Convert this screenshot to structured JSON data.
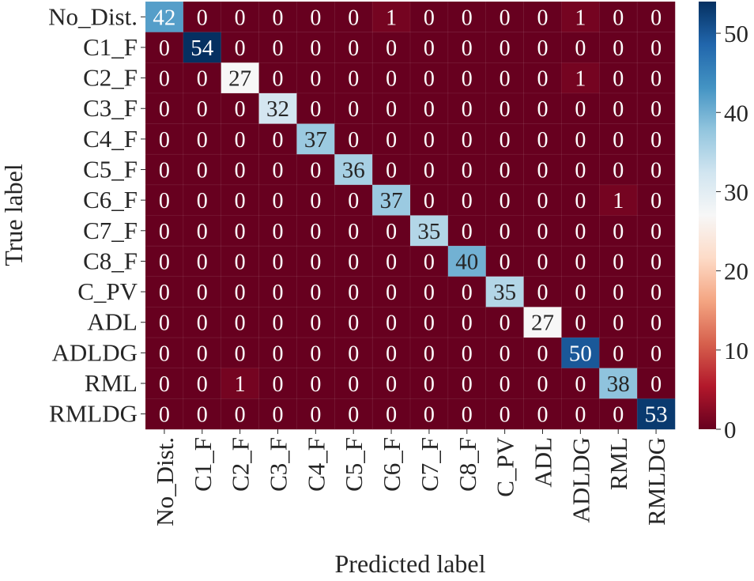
{
  "chart_data": {
    "type": "heatmap",
    "title": "",
    "xlabel": "Predicted label",
    "ylabel": "True label",
    "x_categories": [
      "No_Dist.",
      "C1_F",
      "C2_F",
      "C3_F",
      "C4_F",
      "C5_F",
      "C6_F",
      "C7_F",
      "C8_F",
      "C_PV",
      "ADL",
      "ADLDG",
      "RML",
      "RMLDG"
    ],
    "y_categories": [
      "No_Dist.",
      "C1_F",
      "C2_F",
      "C3_F",
      "C4_F",
      "C5_F",
      "C6_F",
      "C7_F",
      "C8_F",
      "C_PV",
      "ADL",
      "ADLDG",
      "RML",
      "RMLDG"
    ],
    "values": [
      [
        42,
        0,
        0,
        0,
        0,
        0,
        1,
        0,
        0,
        0,
        0,
        1,
        0,
        0
      ],
      [
        0,
        54,
        0,
        0,
        0,
        0,
        0,
        0,
        0,
        0,
        0,
        0,
        0,
        0
      ],
      [
        0,
        0,
        27,
        0,
        0,
        0,
        0,
        0,
        0,
        0,
        0,
        1,
        0,
        0
      ],
      [
        0,
        0,
        0,
        32,
        0,
        0,
        0,
        0,
        0,
        0,
        0,
        0,
        0,
        0
      ],
      [
        0,
        0,
        0,
        0,
        37,
        0,
        0,
        0,
        0,
        0,
        0,
        0,
        0,
        0
      ],
      [
        0,
        0,
        0,
        0,
        0,
        36,
        0,
        0,
        0,
        0,
        0,
        0,
        0,
        0
      ],
      [
        0,
        0,
        0,
        0,
        0,
        0,
        37,
        0,
        0,
        0,
        0,
        0,
        1,
        0
      ],
      [
        0,
        0,
        0,
        0,
        0,
        0,
        0,
        35,
        0,
        0,
        0,
        0,
        0,
        0
      ],
      [
        0,
        0,
        0,
        0,
        0,
        0,
        0,
        0,
        40,
        0,
        0,
        0,
        0,
        0
      ],
      [
        0,
        0,
        0,
        0,
        0,
        0,
        0,
        0,
        0,
        35,
        0,
        0,
        0,
        0
      ],
      [
        0,
        0,
        0,
        0,
        0,
        0,
        0,
        0,
        0,
        0,
        27,
        0,
        0,
        0
      ],
      [
        0,
        0,
        0,
        0,
        0,
        0,
        0,
        0,
        0,
        0,
        0,
        50,
        0,
        0
      ],
      [
        0,
        0,
        1,
        0,
        0,
        0,
        0,
        0,
        0,
        0,
        0,
        0,
        38,
        0
      ],
      [
        0,
        0,
        0,
        0,
        0,
        0,
        0,
        0,
        0,
        0,
        0,
        0,
        0,
        53
      ]
    ],
    "color_range": [
      0,
      54
    ],
    "colormap": [
      "#67001f",
      "#b2182b",
      "#d6604d",
      "#f4a582",
      "#fddbc7",
      "#f7f7f7",
      "#d1e5f0",
      "#92c5de",
      "#4393c3",
      "#2166ac",
      "#053061"
    ],
    "colorbar_ticks": [
      0,
      10,
      20,
      30,
      40,
      50
    ],
    "legend": "colorbar-right"
  }
}
